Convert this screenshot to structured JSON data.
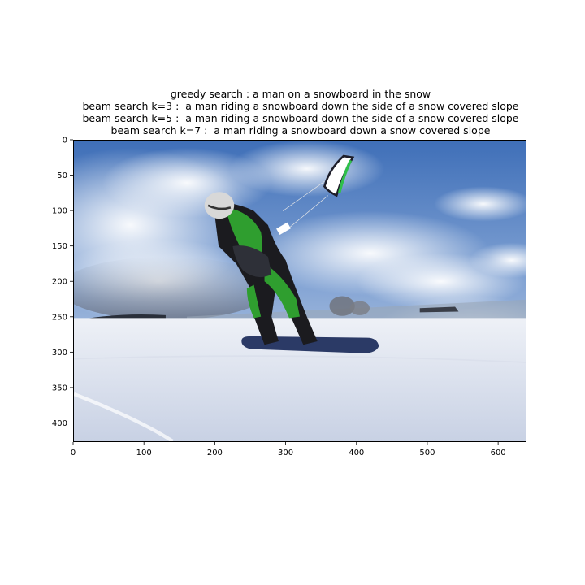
{
  "title": {
    "line1": "greedy search : a man on a snowboard in the snow",
    "line2": "beam search k=3 :  a man riding a snowboard down the side of a snow covered slope",
    "line3": "beam search k=5 :  a man riding a snowboard down the side of a snow covered slope",
    "line4": "beam search k=7 :  a man riding a snowboard down a snow covered slope"
  },
  "axes": {
    "x_ticks": [
      "0",
      "100",
      "200",
      "300",
      "400",
      "500",
      "600"
    ],
    "y_ticks": [
      "0",
      "50",
      "100",
      "150",
      "200",
      "250",
      "300",
      "350",
      "400"
    ],
    "x_range": [
      0,
      640
    ],
    "y_range": [
      0,
      427
    ]
  },
  "image": {
    "subject": "kiteboarder-on-snowboard",
    "sky_color": "#5b86c6",
    "cloud_color": "#e9eef5",
    "snow_color": "#e4e9f3",
    "suit_color": "#2f9e2f",
    "kite_color": "#1e1e2a"
  }
}
